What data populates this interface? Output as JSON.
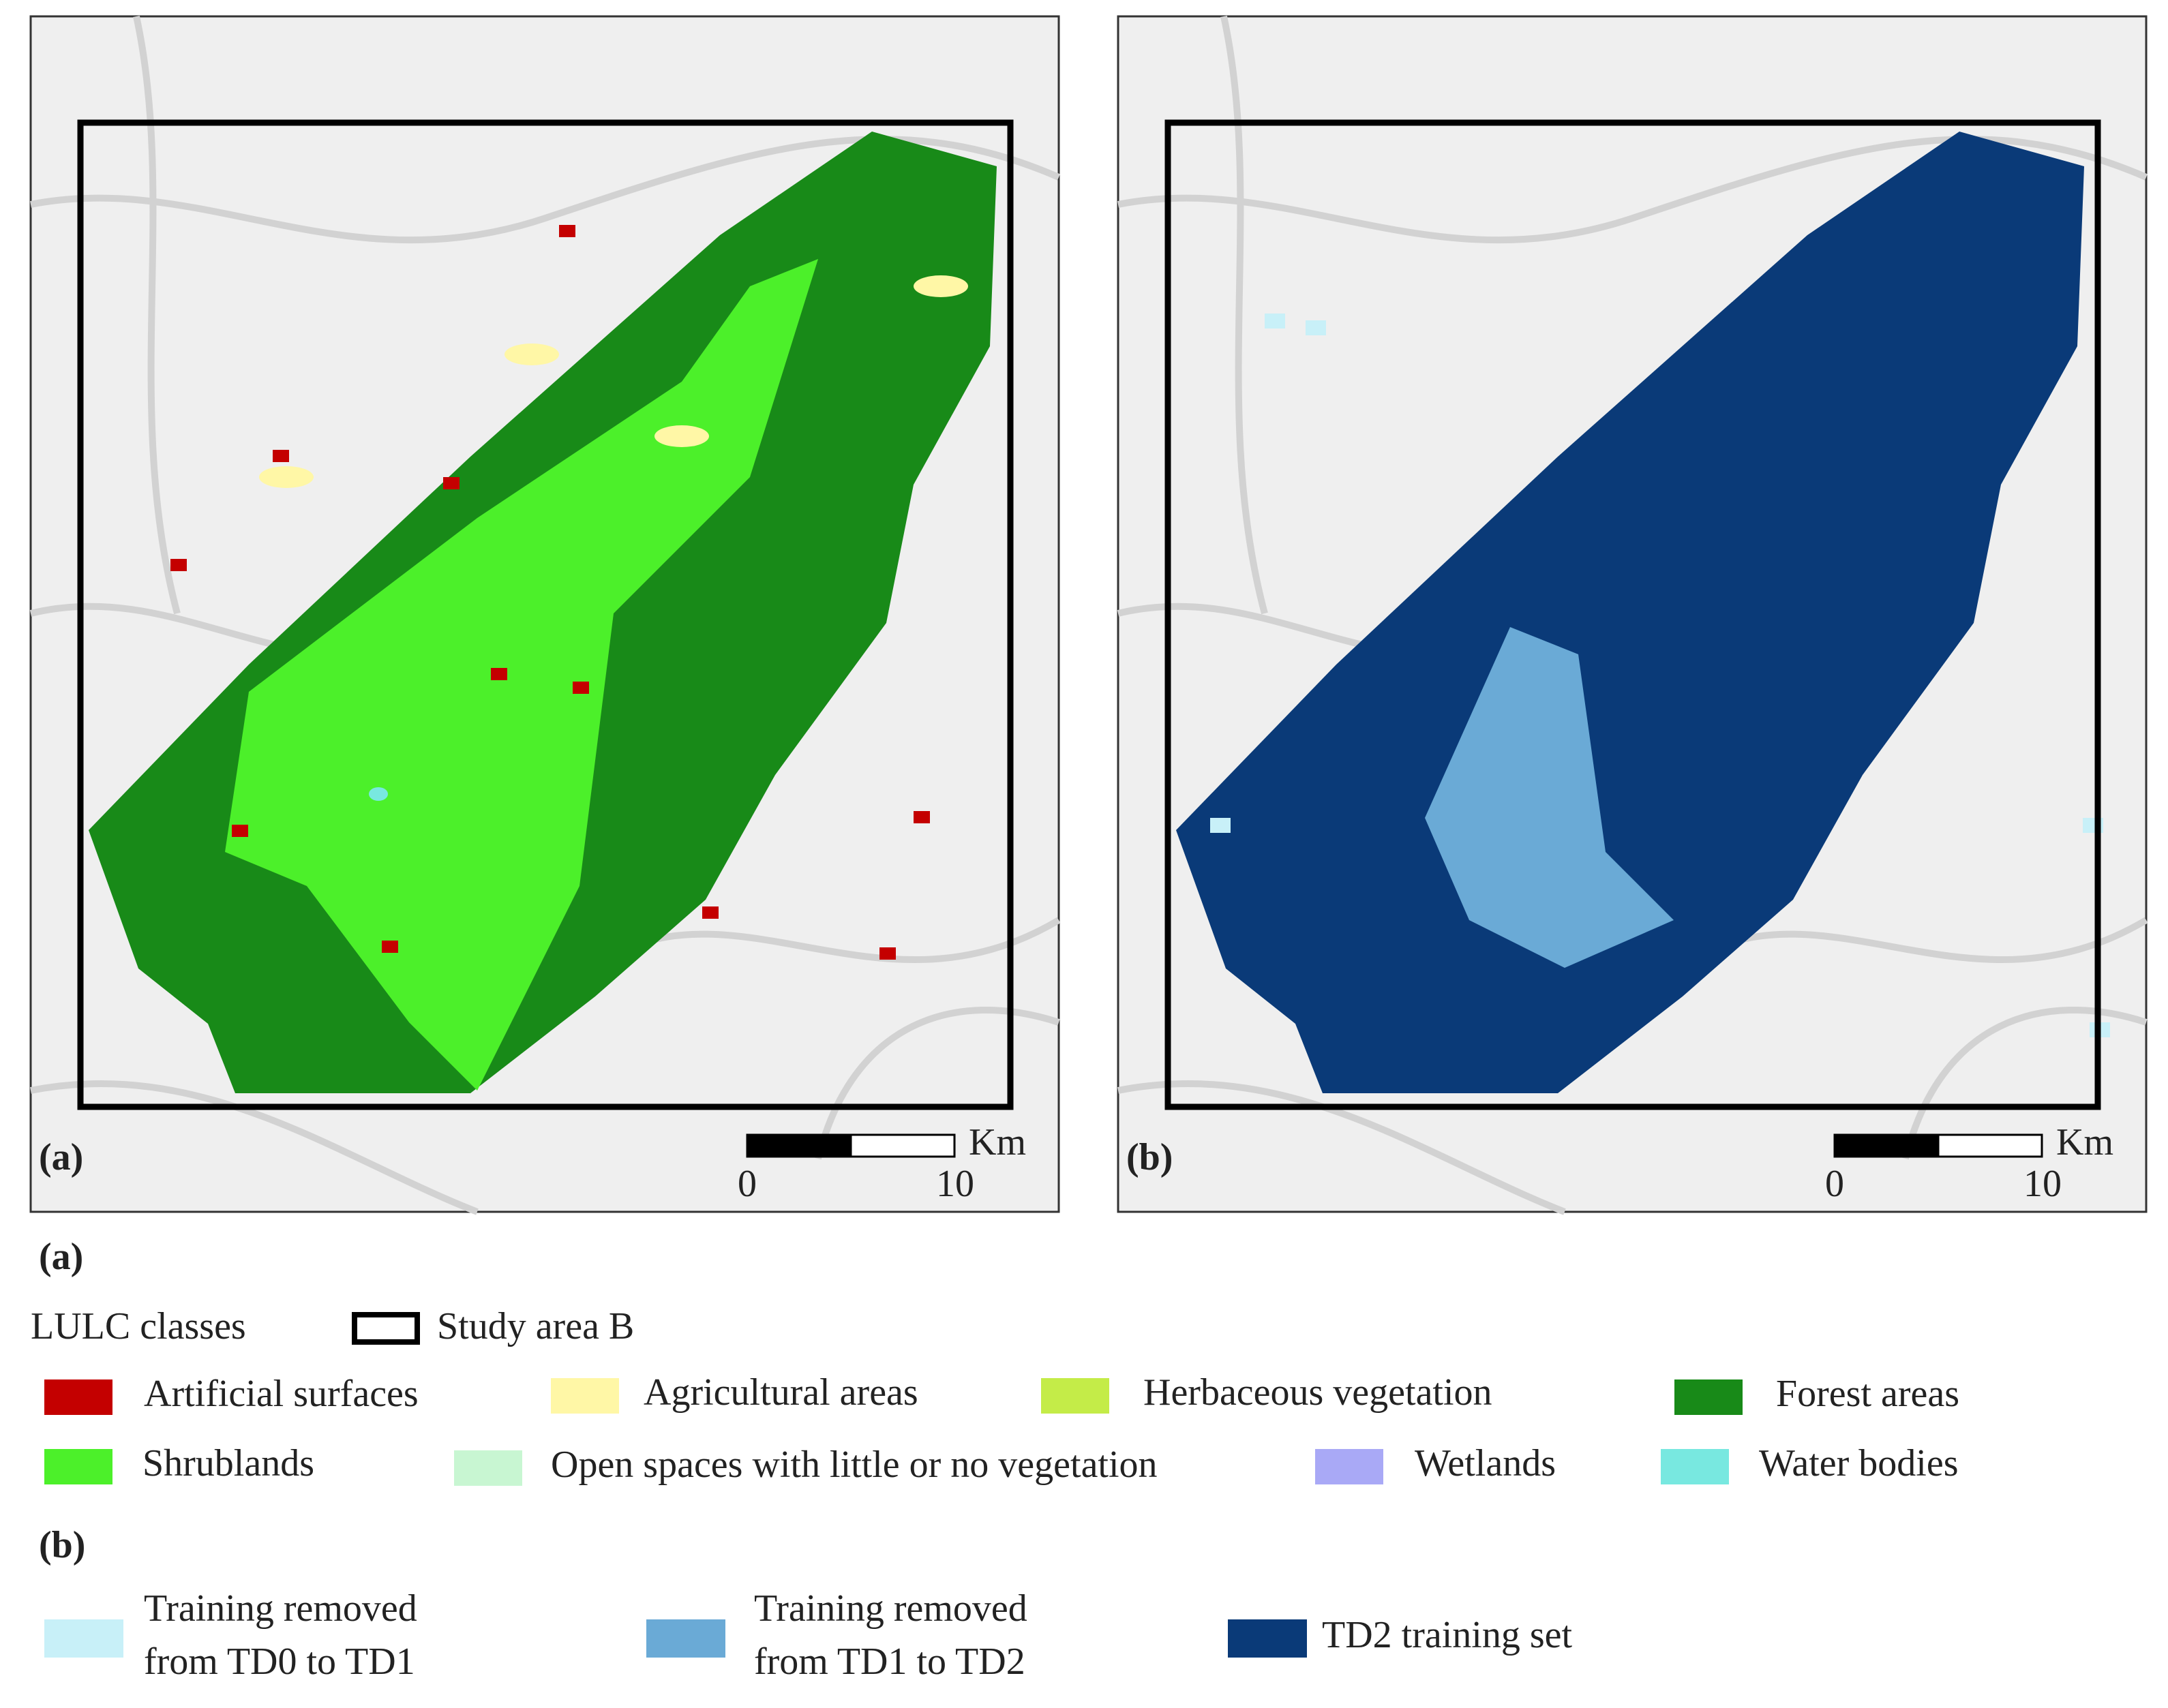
{
  "panels": [
    {
      "label": "(a)",
      "scale": {
        "unit": "Km",
        "ticks": [
          0,
          10
        ]
      }
    },
    {
      "label": "(b)",
      "scale": {
        "unit": "Km",
        "ticks": [
          0,
          10
        ]
      }
    }
  ],
  "legend": {
    "a": {
      "label": "(a)",
      "title": "LULC classes",
      "study_area": "Study area B",
      "classes": [
        {
          "name": "Artificial surfaces",
          "color": "#c40000"
        },
        {
          "name": "Agricultural areas",
          "color": "#fff7a6"
        },
        {
          "name": "Herbaceous vegetation",
          "color": "#c4ec48"
        },
        {
          "name": "Forest areas",
          "color": "#188a18"
        },
        {
          "name": "Shrublands",
          "color": "#4cf02a"
        },
        {
          "name": "Open spaces with little or no vegetation",
          "color": "#c8f6d2"
        },
        {
          "name": "Wetlands",
          "color": "#a9a9f6"
        },
        {
          "name": "Water bodies",
          "color": "#78e8e0"
        }
      ]
    },
    "b": {
      "label": "(b)",
      "classes": [
        {
          "lines": [
            "Training removed",
            "from TD0 to TD1"
          ],
          "color": "#c8f0f8"
        },
        {
          "lines": [
            "Training removed",
            "from TD1 to TD2"
          ],
          "color": "#6aaad6"
        },
        {
          "lines": [
            "TD2 training set"
          ],
          "color": "#0a3a78"
        }
      ]
    }
  }
}
